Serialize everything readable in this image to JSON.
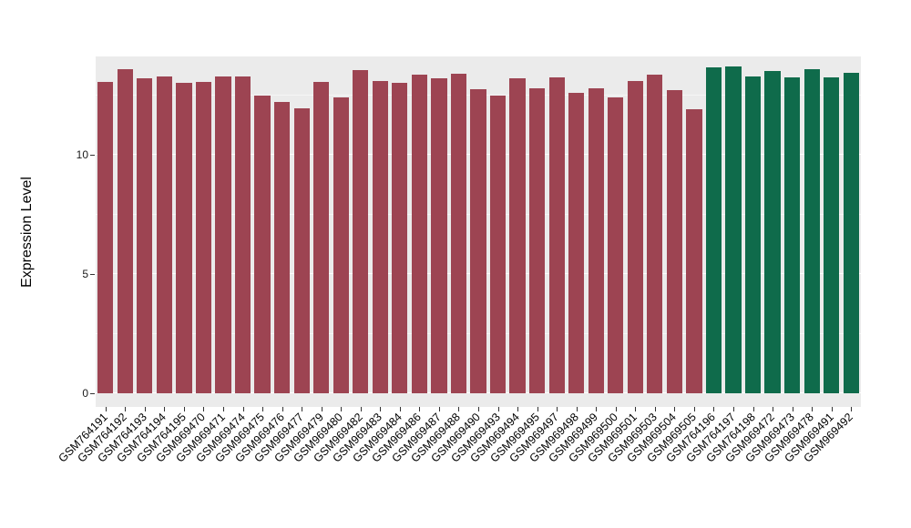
{
  "chart_data": {
    "type": "bar",
    "title": "",
    "xlabel": "",
    "ylabel": "Expression Level",
    "ylim": [
      0,
      14.1
    ],
    "yticks": [
      0,
      5,
      10
    ],
    "yticks_minor": [
      2.5,
      7.5,
      12.5
    ],
    "grid": "on",
    "legend": "none",
    "panel_background": "#EBEBEB",
    "grid_color": "#FFFFFF",
    "colors": {
      "red": "#9D4452",
      "green": "#0F6B4B"
    },
    "categories": [
      "GSM764191",
      "GSM764192",
      "GSM764193",
      "GSM764194",
      "GSM764195",
      "GSM969470",
      "GSM969471",
      "GSM969474",
      "GSM969475",
      "GSM969476",
      "GSM969477",
      "GSM969479",
      "GSM969480",
      "GSM969482",
      "GSM969483",
      "GSM969484",
      "GSM969486",
      "GSM969487",
      "GSM969488",
      "GSM969490",
      "GSM969493",
      "GSM969494",
      "GSM969495",
      "GSM969497",
      "GSM969498",
      "GSM969499",
      "GSM969500",
      "GSM969501",
      "GSM969503",
      "GSM969504",
      "GSM969505",
      "GSM764196",
      "GSM764197",
      "GSM764198",
      "GSM969472",
      "GSM969473",
      "GSM969478",
      "GSM969491",
      "GSM969492"
    ],
    "values": [
      13.05,
      13.6,
      13.2,
      13.3,
      13.0,
      13.05,
      13.3,
      13.3,
      12.5,
      12.2,
      11.95,
      13.05,
      12.4,
      13.55,
      13.1,
      13.0,
      13.35,
      13.2,
      13.4,
      12.75,
      12.5,
      13.2,
      12.8,
      13.25,
      12.6,
      12.8,
      12.4,
      13.1,
      13.35,
      12.7,
      11.9,
      13.65,
      13.7,
      13.3,
      13.5,
      13.25,
      13.6,
      13.25,
      13.45
    ],
    "groups": [
      "red",
      "red",
      "red",
      "red",
      "red",
      "red",
      "red",
      "red",
      "red",
      "red",
      "red",
      "red",
      "red",
      "red",
      "red",
      "red",
      "red",
      "red",
      "red",
      "red",
      "red",
      "red",
      "red",
      "red",
      "red",
      "red",
      "red",
      "red",
      "red",
      "red",
      "red",
      "green",
      "green",
      "green",
      "green",
      "green",
      "green",
      "green",
      "green"
    ]
  }
}
